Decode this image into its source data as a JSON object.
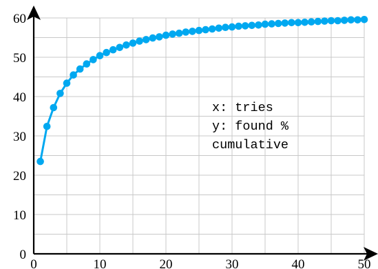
{
  "chart_data": {
    "type": "line",
    "title": "",
    "xlabel": "",
    "ylabel": "",
    "xlim": [
      0,
      50
    ],
    "ylim": [
      0,
      60
    ],
    "x_ticks": [
      0,
      10,
      20,
      30,
      40,
      50
    ],
    "y_ticks": [
      0,
      10,
      20,
      30,
      40,
      50,
      60
    ],
    "grid": true,
    "annotation_lines": [
      "x: tries",
      "y: found %",
      "cumulative"
    ],
    "series": [
      {
        "color": "#00a8f0",
        "x": [
          1,
          2,
          3,
          4,
          5,
          6,
          7,
          8,
          9,
          10,
          11,
          12,
          13,
          14,
          15,
          16,
          17,
          18,
          19,
          20,
          21,
          22,
          23,
          24,
          25,
          26,
          27,
          28,
          29,
          30,
          31,
          32,
          33,
          34,
          35,
          36,
          37,
          38,
          39,
          40,
          41,
          42,
          43,
          44,
          45,
          46,
          47,
          48,
          49,
          50
        ],
        "values": [
          23.5,
          32.4,
          37.2,
          40.8,
          43.4,
          45.5,
          47.0,
          48.3,
          49.4,
          50.4,
          51.2,
          51.9,
          52.5,
          53.1,
          53.6,
          54.1,
          54.5,
          54.9,
          55.2,
          55.6,
          55.9,
          56.1,
          56.4,
          56.6,
          56.8,
          57.0,
          57.2,
          57.4,
          57.6,
          57.7,
          57.9,
          58.0,
          58.1,
          58.2,
          58.4,
          58.5,
          58.6,
          58.7,
          58.8,
          58.8,
          58.9,
          59.0,
          59.1,
          59.2,
          59.3,
          59.3,
          59.4,
          59.5,
          59.5,
          59.6
        ]
      }
    ]
  }
}
